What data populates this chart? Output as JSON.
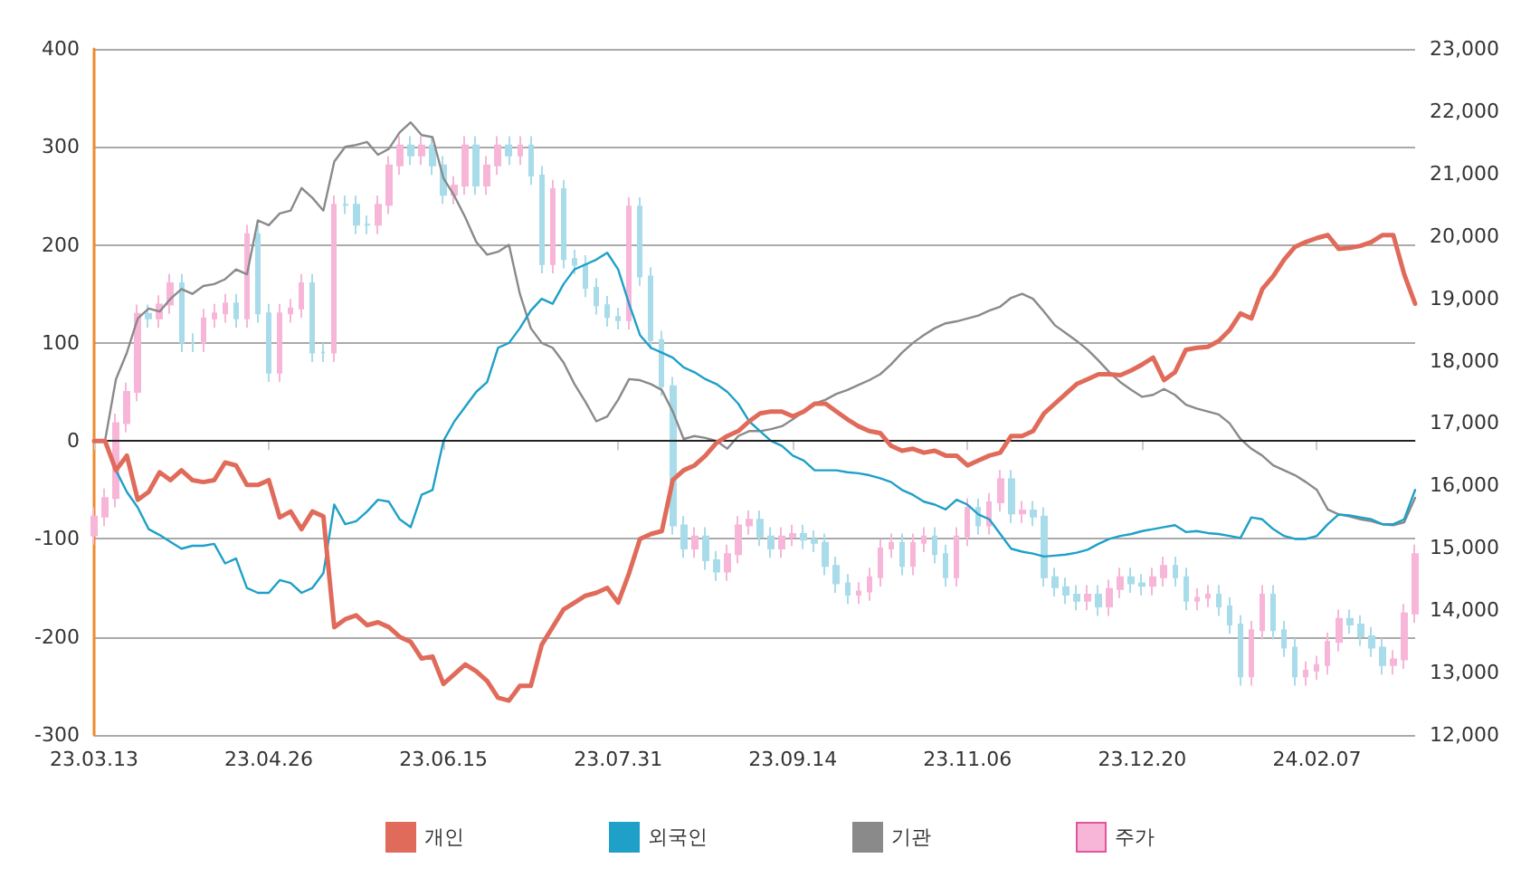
{
  "chart_data": {
    "type": "line",
    "categories": [
      "23.03.13",
      null,
      null,
      null,
      null,
      null,
      null,
      null,
      null,
      null,
      null,
      null,
      null,
      null,
      null,
      null,
      "23.04.26",
      null,
      null,
      null,
      null,
      null,
      null,
      null,
      null,
      null,
      null,
      null,
      null,
      null,
      null,
      null,
      "23.06.15",
      null,
      null,
      null,
      null,
      null,
      null,
      null,
      null,
      null,
      null,
      null,
      null,
      null,
      null,
      null,
      "23.07.31",
      null,
      null,
      null,
      null,
      null,
      null,
      null,
      null,
      null,
      null,
      null,
      null,
      null,
      null,
      null,
      "23.09.14",
      null,
      null,
      null,
      null,
      null,
      null,
      null,
      null,
      null,
      null,
      null,
      null,
      null,
      null,
      null,
      "23.11.06",
      null,
      null,
      null,
      null,
      null,
      null,
      null,
      null,
      null,
      null,
      null,
      null,
      null,
      null,
      null,
      "23.12.20",
      null,
      null,
      null,
      null,
      null,
      null,
      null,
      null,
      null,
      null,
      null,
      null,
      null,
      null,
      null,
      "24.02.07",
      null,
      null,
      null,
      null,
      null,
      null,
      null,
      null,
      null
    ],
    "series": [
      {
        "name": "개인",
        "color": "#e06b5a",
        "values": [
          0,
          0,
          -30,
          -15,
          -60,
          -52,
          -32,
          -40,
          -30,
          -40,
          -42,
          -40,
          -22,
          -25,
          -45,
          -45,
          -40,
          -78,
          -72,
          -90,
          -72,
          -77,
          -190,
          -182,
          -178,
          -188,
          -185,
          -190,
          -200,
          -205,
          -222,
          -220,
          -248,
          -238,
          -228,
          -235,
          -245,
          -262,
          -265,
          -250,
          -250,
          -208,
          -190,
          -172,
          -165,
          -158,
          -155,
          -150,
          -165,
          -135,
          -100,
          -95,
          -92,
          -40,
          -30,
          -25,
          -15,
          -2,
          5,
          10,
          20,
          28,
          30,
          30,
          25,
          30,
          38,
          38,
          30,
          22,
          15,
          10,
          8,
          -5,
          -10,
          -8,
          -12,
          -10,
          -15,
          -15,
          -25,
          -20,
          -15,
          -12,
          5,
          5,
          10,
          28,
          38,
          48,
          58,
          63,
          68,
          68,
          67,
          72,
          78,
          85,
          62,
          70,
          93,
          95,
          96,
          102,
          113,
          130,
          125,
          155,
          168,
          185,
          198,
          203,
          207,
          210,
          196,
          197,
          199,
          203,
          210,
          210,
          170,
          140
        ]
      },
      {
        "name": "외국인",
        "color": "#1ea0c8",
        "values": [
          0,
          0,
          -30,
          -52,
          -68,
          -90,
          -96,
          -103,
          -110,
          -107,
          -107,
          -105,
          -125,
          -120,
          -150,
          -155,
          -155,
          -142,
          -145,
          -155,
          -150,
          -135,
          -65,
          -85,
          -82,
          -72,
          -60,
          -62,
          -80,
          -88,
          -55,
          -50,
          0,
          20,
          35,
          50,
          60,
          95,
          100,
          115,
          133,
          145,
          140,
          160,
          175,
          180,
          185,
          192,
          175,
          140,
          108,
          95,
          90,
          85,
          75,
          70,
          63,
          58,
          50,
          38,
          20,
          10,
          0,
          -5,
          -15,
          -20,
          -30,
          -30,
          -30,
          -32,
          -33,
          -35,
          -38,
          -42,
          -50,
          -55,
          -62,
          -65,
          -70,
          -60,
          -65,
          -75,
          -80,
          -95,
          -110,
          -113,
          -115,
          -118,
          -117,
          -116,
          -114,
          -111,
          -105,
          -100,
          -97,
          -95,
          -92,
          -90,
          -88,
          -86,
          -93,
          -92,
          -94,
          -95,
          -97,
          -99,
          -78,
          -80,
          -90,
          -97,
          -100,
          -100,
          -97,
          -85,
          -75,
          -76,
          -78,
          -80,
          -85,
          -85,
          -80,
          -50
        ]
      },
      {
        "name": "기관",
        "color": "#8a8a8a",
        "values": [
          0,
          0,
          63,
          90,
          125,
          135,
          132,
          145,
          155,
          150,
          158,
          160,
          165,
          175,
          170,
          225,
          220,
          232,
          235,
          258,
          248,
          235,
          285,
          300,
          302,
          305,
          292,
          298,
          315,
          325,
          312,
          310,
          268,
          250,
          228,
          203,
          190,
          193,
          200,
          150,
          115,
          100,
          95,
          80,
          58,
          40,
          20,
          25,
          42,
          63,
          62,
          58,
          52,
          30,
          2,
          5,
          3,
          0,
          -8,
          5,
          10,
          10,
          12,
          15,
          22,
          30,
          38,
          42,
          48,
          52,
          57,
          62,
          68,
          78,
          90,
          100,
          108,
          115,
          120,
          122,
          125,
          128,
          133,
          137,
          146,
          150,
          145,
          132,
          118,
          110,
          102,
          93,
          82,
          70,
          60,
          52,
          45,
          47,
          53,
          47,
          37,
          33,
          30,
          27,
          18,
          2,
          -8,
          -15,
          -25,
          -30,
          -35,
          -42,
          -50,
          -70,
          -75,
          -77,
          -80,
          -82,
          -85,
          -86,
          -83,
          -58
        ]
      },
      {
        "name": "주가",
        "type": "candlestick",
        "axis": "y2",
        "color": "#f7b6d8",
        "colors": [
          "#f7b6d8",
          "#f7b6d8",
          "#f7b6d8",
          "#f7b6d8",
          "#f7b6d8",
          "#a8dcea",
          "#f7b6d8",
          "#f7b6d8",
          "#a8dcea",
          "#a8dcea",
          "#f7b6d8",
          "#f7b6d8",
          "#f7b6d8",
          "#a8dcea",
          "#f7b6d8",
          "#a8dcea",
          "#a8dcea",
          "#f7b6d8",
          "#f7b6d8",
          "#f7b6d8",
          "#a8dcea",
          "#a8dcea",
          "#f7b6d8",
          "#a8dcea",
          "#a8dcea",
          "#a8dcea",
          "#f7b6d8",
          "#f7b6d8",
          "#f7b6d8",
          "#a8dcea",
          "#f7b6d8",
          "#a8dcea",
          "#a8dcea",
          "#f7b6d8",
          "#f7b6d8",
          "#a8dcea",
          "#f7b6d8",
          "#f7b6d8",
          "#a8dcea",
          "#f7b6d8",
          "#a8dcea",
          "#a8dcea",
          "#f7b6d8",
          "#a8dcea",
          "#a8dcea",
          "#a8dcea",
          "#a8dcea",
          "#a8dcea",
          "#a8dcea",
          "#f7b6d8",
          "#a8dcea",
          "#a8dcea",
          "#a8dcea",
          "#a8dcea",
          "#a8dcea",
          "#f7b6d8",
          "#a8dcea",
          "#a8dcea",
          "#f7b6d8",
          "#f7b6d8",
          "#f7b6d8",
          "#a8dcea",
          "#a8dcea",
          "#f7b6d8",
          "#f7b6d8",
          "#a8dcea",
          "#a8dcea",
          "#a8dcea",
          "#a8dcea",
          "#a8dcea",
          "#f7b6d8",
          "#f7b6d8",
          "#f7b6d8",
          "#f7b6d8",
          "#a8dcea",
          "#f7b6d8",
          "#f7b6d8",
          "#a8dcea",
          "#a8dcea",
          "#f7b6d8",
          "#f7b6d8",
          "#a8dcea",
          "#f7b6d8",
          "#f7b6d8",
          "#a8dcea",
          "#f7b6d8",
          "#a8dcea",
          "#a8dcea",
          "#a8dcea",
          "#a8dcea",
          "#a8dcea",
          "#f7b6d8",
          "#a8dcea",
          "#f7b6d8",
          "#f7b6d8",
          "#a8dcea",
          "#a8dcea",
          "#f7b6d8",
          "#f7b6d8",
          "#a8dcea",
          "#a8dcea",
          "#f7b6d8",
          "#f7b6d8",
          "#a8dcea",
          "#a8dcea",
          "#a8dcea",
          "#f7b6d8",
          "#f7b6d8",
          "#a8dcea",
          "#a8dcea",
          "#a8dcea",
          "#f7b6d8",
          "#f7b6d8",
          "#f7b6d8",
          "#f7b6d8",
          "#a8dcea",
          "#a8dcea",
          "#a8dcea",
          "#a8dcea",
          "#f7b6d8",
          "#f7b6d8",
          "#f7b6d8"
        ],
        "ohlc": [
          [
            15200,
            15650,
            15050,
            15500
          ],
          [
            15500,
            15950,
            15350,
            15800
          ],
          [
            15800,
            17150,
            15650,
            17000
          ],
          [
            17000,
            17650,
            16850,
            17500
          ],
          [
            17500,
            18900,
            17350,
            18750
          ],
          [
            18750,
            18900,
            18530,
            18680
          ],
          [
            18680,
            19050,
            18530,
            18900
          ],
          [
            18900,
            19390,
            18750,
            19240
          ],
          [
            19240,
            19390,
            18140,
            18290
          ],
          [
            18290,
            18440,
            18140,
            18290
          ],
          [
            18290,
            18830,
            18140,
            18680
          ],
          [
            18680,
            18910,
            18530,
            18760
          ],
          [
            18760,
            19070,
            18610,
            18920
          ],
          [
            18920,
            19070,
            18530,
            18680
          ],
          [
            18680,
            20180,
            18530,
            20030
          ],
          [
            20030,
            20180,
            18610,
            18760
          ],
          [
            18760,
            18910,
            17660,
            17810
          ],
          [
            17810,
            18910,
            17660,
            18760
          ],
          [
            18760,
            18990,
            18610,
            18840
          ],
          [
            18840,
            19390,
            18690,
            19240
          ],
          [
            19240,
            19390,
            17980,
            18130
          ],
          [
            18130,
            18280,
            17980,
            18130
          ],
          [
            18130,
            20650,
            17980,
            20500
          ],
          [
            20500,
            20650,
            20350,
            20500
          ],
          [
            20500,
            20650,
            20030,
            20180
          ],
          [
            20180,
            20330,
            20030,
            20180
          ],
          [
            20180,
            20650,
            20030,
            20500
          ],
          [
            20500,
            21280,
            20350,
            21130
          ],
          [
            21130,
            21600,
            20980,
            21450
          ],
          [
            21450,
            21600,
            21140,
            21290
          ],
          [
            21290,
            21600,
            21140,
            21450
          ],
          [
            21450,
            21600,
            20980,
            21130
          ],
          [
            21130,
            21280,
            20510,
            20660
          ],
          [
            20660,
            20960,
            20510,
            20810
          ],
          [
            20810,
            21600,
            20660,
            21450
          ],
          [
            21450,
            21600,
            20660,
            20810
          ],
          [
            20810,
            21280,
            20660,
            21130
          ],
          [
            21130,
            21600,
            20980,
            21450
          ],
          [
            21450,
            21600,
            21140,
            21290
          ],
          [
            21290,
            21600,
            21140,
            21450
          ],
          [
            21450,
            21600,
            20820,
            20970
          ],
          [
            20970,
            21120,
            19400,
            19550
          ],
          [
            19550,
            20900,
            19400,
            20750
          ],
          [
            20750,
            20900,
            19480,
            19630
          ],
          [
            19630,
            19780,
            19390,
            19540
          ],
          [
            19540,
            19690,
            19020,
            19170
          ],
          [
            19170,
            19320,
            18740,
            18890
          ],
          [
            18890,
            19040,
            18550,
            18700
          ],
          [
            18700,
            18850,
            18500,
            18650
          ],
          [
            18650,
            20620,
            18500,
            20470
          ],
          [
            20470,
            20620,
            19200,
            19350
          ],
          [
            19350,
            19500,
            18180,
            18330
          ],
          [
            18330,
            18480,
            17440,
            17590
          ],
          [
            17590,
            17740,
            15210,
            15360
          ],
          [
            15360,
            15510,
            14840,
            14990
          ],
          [
            14990,
            15330,
            14840,
            15180
          ],
          [
            15180,
            15330,
            14650,
            14800
          ],
          [
            14800,
            14950,
            14470,
            14620
          ],
          [
            14620,
            15050,
            14470,
            14900
          ],
          [
            14900,
            15510,
            14750,
            15360
          ],
          [
            15360,
            15600,
            15210,
            15450
          ],
          [
            15450,
            15600,
            15030,
            15180
          ],
          [
            15180,
            15330,
            14840,
            14990
          ],
          [
            14990,
            15330,
            14840,
            15180
          ],
          [
            15180,
            15370,
            15030,
            15220
          ],
          [
            15220,
            15370,
            14980,
            15130
          ],
          [
            15130,
            15280,
            14930,
            15080
          ],
          [
            15080,
            15230,
            14560,
            14710
          ],
          [
            14710,
            14860,
            14280,
            14430
          ],
          [
            14430,
            14580,
            14100,
            14250
          ],
          [
            14250,
            14450,
            14100,
            14300
          ],
          [
            14300,
            14680,
            14150,
            14530
          ],
          [
            14530,
            15140,
            14380,
            14990
          ],
          [
            14990,
            15230,
            14840,
            15080
          ],
          [
            15080,
            15230,
            14560,
            14710
          ],
          [
            14710,
            15230,
            14560,
            15080
          ],
          [
            15080,
            15330,
            14930,
            15180
          ],
          [
            15180,
            15330,
            14750,
            14900
          ],
          [
            14900,
            15050,
            14380,
            14530
          ],
          [
            14530,
            15330,
            14380,
            15180
          ],
          [
            15180,
            15790,
            15030,
            15640
          ],
          [
            15640,
            15790,
            15210,
            15360
          ],
          [
            15360,
            15880,
            15210,
            15730
          ],
          [
            15730,
            16250,
            15580,
            16100
          ],
          [
            16100,
            16250,
            15400,
            15550
          ],
          [
            15550,
            15750,
            15400,
            15600
          ],
          [
            15600,
            15750,
            15350,
            15500
          ],
          [
            15500,
            15650,
            14380,
            14530
          ],
          [
            14530,
            14680,
            14220,
            14370
          ],
          [
            14370,
            14520,
            14100,
            14250
          ],
          [
            14250,
            14400,
            14000,
            14150
          ],
          [
            14150,
            14400,
            14000,
            14250
          ],
          [
            14250,
            14400,
            13910,
            14060
          ],
          [
            14060,
            14490,
            13910,
            14340
          ],
          [
            14340,
            14680,
            14190,
            14530
          ],
          [
            14530,
            14680,
            14280,
            14430
          ],
          [
            14430,
            14580,
            14240,
            14390
          ],
          [
            14390,
            14680,
            14240,
            14530
          ],
          [
            14530,
            14860,
            14380,
            14710
          ],
          [
            14710,
            14860,
            14380,
            14530
          ],
          [
            14530,
            14680,
            14000,
            14150
          ],
          [
            14150,
            14350,
            14000,
            14200
          ],
          [
            14200,
            14400,
            14050,
            14250
          ],
          [
            14250,
            14400,
            13910,
            14060
          ],
          [
            14060,
            14210,
            13620,
            13770
          ],
          [
            13770,
            13920,
            12790,
            12940
          ],
          [
            12940,
            13830,
            12790,
            13680
          ],
          [
            13680,
            14400,
            13530,
            14250
          ],
          [
            14250,
            14400,
            13530,
            13680
          ],
          [
            13680,
            13830,
            13250,
            13400
          ],
          [
            13400,
            13550,
            12790,
            12940
          ],
          [
            12940,
            13180,
            12790,
            13030
          ],
          [
            13030,
            13270,
            12880,
            13120
          ],
          [
            13120,
            13640,
            12970,
            13490
          ],
          [
            13490,
            14010,
            13340,
            13860
          ],
          [
            13860,
            14010,
            13620,
            13770
          ],
          [
            13770,
            13920,
            13430,
            13580
          ],
          [
            13580,
            13730,
            13250,
            13400
          ],
          [
            13400,
            13550,
            12970,
            13120
          ],
          [
            13120,
            13360,
            12970,
            13210
          ],
          [
            13210,
            14100,
            13060,
            13950
          ],
          [
            13950,
            15050,
            13800,
            14900
          ]
        ]
      }
    ],
    "ylim": [
      -300,
      400
    ],
    "yticks": [
      -300,
      -200,
      -100,
      0,
      100,
      200,
      300,
      400
    ],
    "y2lim": [
      12000,
      23000
    ],
    "y2ticks": [
      {
        "value": 12000,
        "label": "12,000"
      },
      {
        "value": 13000,
        "label": "13,000"
      },
      {
        "value": 14000,
        "label": "14,000"
      },
      {
        "value": 15000,
        "label": "15,000"
      },
      {
        "value": 16000,
        "label": "16,000"
      },
      {
        "value": 17000,
        "label": "17,000"
      },
      {
        "value": 18000,
        "label": "18,000"
      },
      {
        "value": 19000,
        "label": "19,000"
      },
      {
        "value": 20000,
        "label": "20,000"
      },
      {
        "value": 21000,
        "label": "21,000"
      },
      {
        "value": 22000,
        "label": "22,000"
      },
      {
        "value": 23000,
        "label": "23,000"
      }
    ],
    "ref_lines": [
      {
        "axis": "y",
        "value": 0,
        "color": "#222222"
      }
    ],
    "grid": "y",
    "legend": "bottom",
    "marker": "none"
  }
}
